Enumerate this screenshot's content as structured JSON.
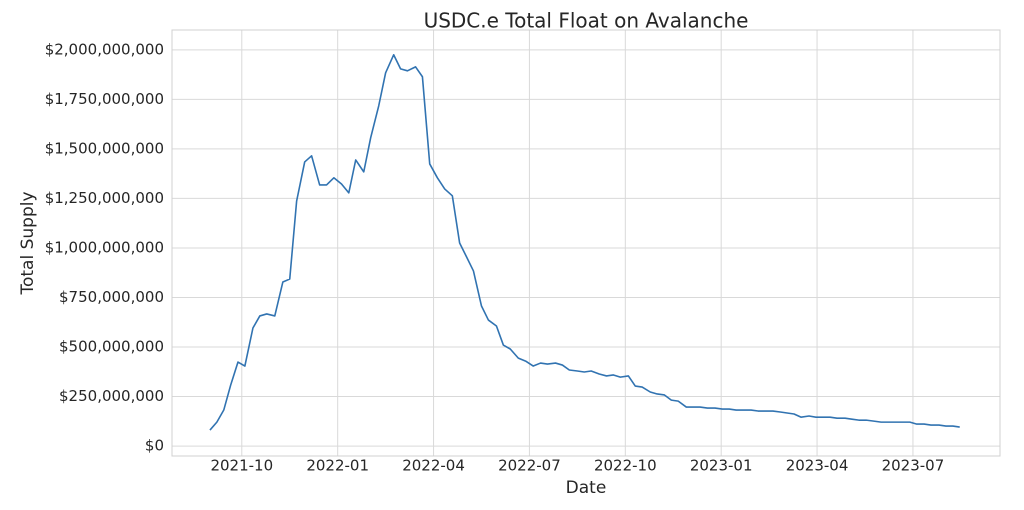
{
  "chart_data": {
    "type": "line",
    "title": "USDC.e Total Float on Avalanche",
    "x_label": "Date",
    "y_label": "Total Supply",
    "grid": true,
    "xlim": [
      2021.568,
      2023.727
    ],
    "xticks": [
      {
        "value": 2021.75,
        "label": "2021-10"
      },
      {
        "value": 2022.0,
        "label": "2022-01"
      },
      {
        "value": 2022.25,
        "label": "2022-04"
      },
      {
        "value": 2022.5,
        "label": "2022-07"
      },
      {
        "value": 2022.75,
        "label": "2022-10"
      },
      {
        "value": 2023.0,
        "label": "2023-01"
      },
      {
        "value": 2023.25,
        "label": "2023-04"
      },
      {
        "value": 2023.5,
        "label": "2023-07"
      }
    ],
    "ylim": [
      -50000000,
      2100000000
    ],
    "yticks": [
      {
        "value": 0,
        "label": "$0"
      },
      {
        "value": 250000000,
        "label": "$250,000,000"
      },
      {
        "value": 500000000,
        "label": "$500,000,000"
      },
      {
        "value": 750000000,
        "label": "$750,000,000"
      },
      {
        "value": 1000000000,
        "label": "$1,000,000,000"
      },
      {
        "value": 1250000000,
        "label": "$1,250,000,000"
      },
      {
        "value": 1500000000,
        "label": "$1,500,000,000"
      },
      {
        "value": 1750000000,
        "label": "$1,750,000,000"
      },
      {
        "value": 2000000000,
        "label": "$2,000,000,000"
      }
    ],
    "x": [
      2021.667,
      2021.685,
      2021.703,
      2021.721,
      2021.74,
      2021.758,
      2021.779,
      2021.797,
      2021.815,
      2021.836,
      2021.857,
      2021.875,
      2021.893,
      2021.914,
      2021.932,
      2021.953,
      2021.971,
      2021.99,
      2022.01,
      2022.029,
      2022.047,
      2022.068,
      2022.086,
      2022.107,
      2022.125,
      2022.146,
      2022.164,
      2022.182,
      2022.203,
      2022.221,
      2022.24,
      2022.26,
      2022.279,
      2022.299,
      2022.318,
      2022.336,
      2022.354,
      2022.375,
      2022.393,
      2022.414,
      2022.432,
      2022.45,
      2022.471,
      2022.49,
      2022.51,
      2022.529,
      2022.547,
      2022.568,
      2022.586,
      2022.604,
      2022.625,
      2022.643,
      2022.661,
      2022.682,
      2022.701,
      2022.719,
      2022.737,
      2022.758,
      2022.776,
      2022.794,
      2022.815,
      2022.833,
      2022.852,
      2022.87,
      2022.888,
      2022.909,
      2022.927,
      2022.945,
      2022.964,
      2022.984,
      2023.003,
      2023.021,
      2023.039,
      2023.06,
      2023.078,
      2023.096,
      2023.115,
      2023.135,
      2023.154,
      2023.172,
      2023.19,
      2023.208,
      2023.229,
      2023.247,
      2023.266,
      2023.284,
      2023.302,
      2023.323,
      2023.341,
      2023.359,
      2023.378,
      2023.398,
      2023.417,
      2023.435,
      2023.453,
      2023.471,
      2023.492,
      2023.51,
      2023.529,
      2023.547,
      2023.568,
      2023.586,
      2023.604,
      2023.622
    ],
    "series": [
      {
        "color": "#3173b1",
        "values": [
          81000000,
          121000000,
          182000000,
          308000000,
          424000000,
          404000000,
          596000000,
          657000000,
          667000000,
          657000000,
          828000000,
          843000000,
          1237000000,
          1434000000,
          1465000000,
          1318000000,
          1318000000,
          1354000000,
          1323000000,
          1278000000,
          1444000000,
          1384000000,
          1556000000,
          1717000000,
          1884000000,
          1975000000,
          1904000000,
          1894000000,
          1914000000,
          1864000000,
          1424000000,
          1354000000,
          1298000000,
          1263000000,
          1025000000,
          955000000,
          884000000,
          707000000,
          636000000,
          606000000,
          510000000,
          490000000,
          444000000,
          429000000,
          404000000,
          419000000,
          414000000,
          419000000,
          409000000,
          384000000,
          379000000,
          374000000,
          379000000,
          364000000,
          354000000,
          359000000,
          348000000,
          354000000,
          303000000,
          298000000,
          273000000,
          263000000,
          258000000,
          232000000,
          227000000,
          197000000,
          197000000,
          197000000,
          192000000,
          192000000,
          187000000,
          187000000,
          182000000,
          182000000,
          182000000,
          177000000,
          177000000,
          177000000,
          172000000,
          167000000,
          162000000,
          146000000,
          152000000,
          146000000,
          146000000,
          146000000,
          141000000,
          141000000,
          136000000,
          131000000,
          131000000,
          126000000,
          121000000,
          121000000,
          121000000,
          121000000,
          121000000,
          111000000,
          111000000,
          106000000,
          106000000,
          101000000,
          101000000,
          96000000
        ]
      }
    ]
  }
}
